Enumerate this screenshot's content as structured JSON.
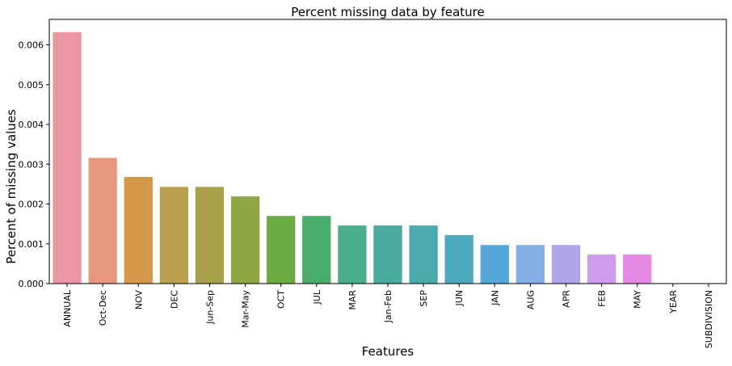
{
  "chart_data": {
    "type": "bar",
    "title": "Percent missing data by feature",
    "xlabel": "Features",
    "ylabel": "Percent of missing values",
    "categories": [
      "ANNUAL",
      "Oct-Dec",
      "NOV",
      "DEC",
      "Jun-Sep",
      "Mar-May",
      "OCT",
      "JUL",
      "MAR",
      "Jan-Feb",
      "SEP",
      "JUN",
      "JAN",
      "AUG",
      "APR",
      "FEB",
      "MAY",
      "YEAR",
      "SUBDIVISION"
    ],
    "values": [
      0.00632,
      0.00316,
      0.00268,
      0.00243,
      0.00243,
      0.00219,
      0.0017,
      0.0017,
      0.00146,
      0.00146,
      0.00146,
      0.00122,
      0.00097,
      0.00097,
      0.00097,
      0.00073,
      0.00073,
      0.0,
      0.0
    ],
    "colors": [
      "#ea96a3",
      "#e8997d",
      "#d5974a",
      "#bc9f4e",
      "#a8a04a",
      "#8fa546",
      "#6aab44",
      "#4aac6a",
      "#4aad8c",
      "#4aaa9e",
      "#4baaab",
      "#4fa9bd",
      "#55a6d9",
      "#84aee6",
      "#afa6ea",
      "#cd9ceb",
      "#e48ae4",
      "#ea8fbd",
      "#ec96b0"
    ],
    "yticks": [
      "0.000",
      "0.001",
      "0.002",
      "0.003",
      "0.004",
      "0.005",
      "0.006"
    ],
    "ylim": [
      0,
      0.00664
    ],
    "grid": false,
    "legend": "none"
  }
}
